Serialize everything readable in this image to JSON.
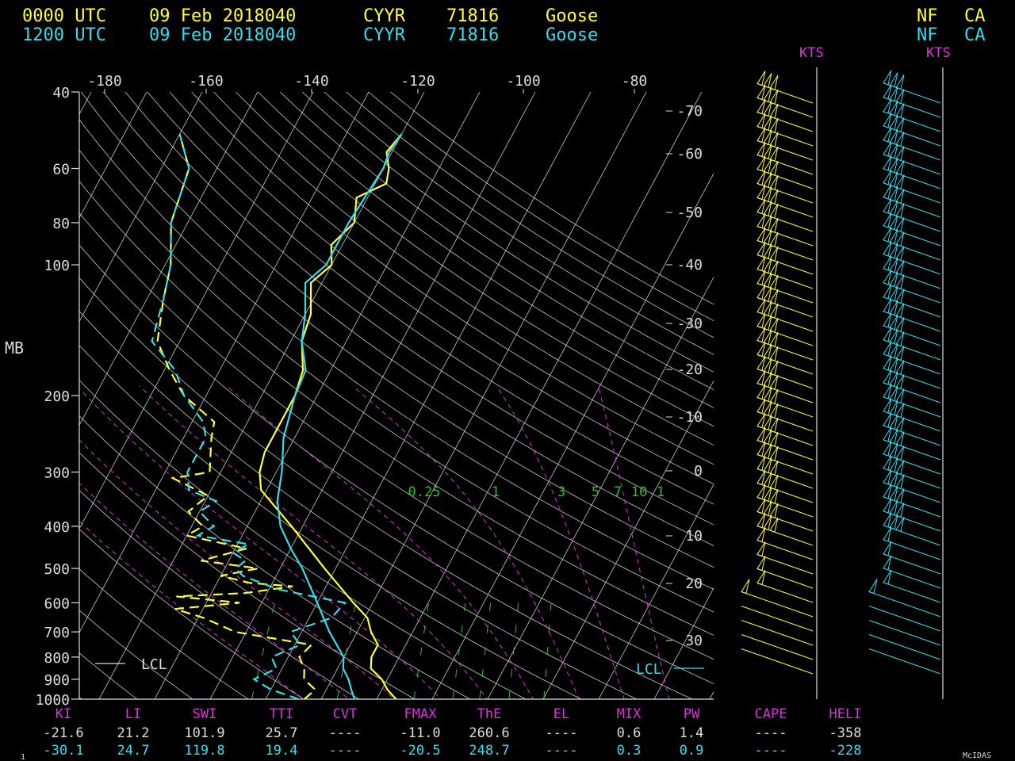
{
  "header": {
    "rows": [
      {
        "time": "0000 UTC",
        "date": "09 Feb 2018040",
        "station": "CYYR",
        "id": "71816",
        "name": "Goose",
        "region": "NF",
        "country": "CA",
        "color": "#ffff33"
      },
      {
        "time": "1200 UTC",
        "date": "09 Feb 2018040",
        "station": "CYYR",
        "id": "71816",
        "name": "Goose",
        "region": "NF",
        "country": "CA",
        "color": "#33ddee"
      }
    ]
  },
  "colors": {
    "yellow": "#ffff33",
    "cyan": "#33ddee",
    "magenta": "#dd33dd",
    "green": "#33bb33",
    "white": "#dddddd",
    "grid": "#c8c8c8"
  },
  "labels": {
    "kts_left": "KTS",
    "kts_right": "KTS",
    "mb": "MB",
    "lcl_left": "LCL",
    "lcl_right": "LCL",
    "footer": "McIDAS",
    "corner": "1"
  },
  "chart_data": {
    "type": "line",
    "pressure_ticks": [
      40,
      60,
      80,
      100,
      200,
      300,
      400,
      500,
      600,
      700,
      800,
      900,
      1000
    ],
    "top_ticks": [
      -180,
      -160,
      -140,
      -120,
      -100,
      -80
    ],
    "right_ticks": [
      -70,
      -60,
      -50,
      -40,
      -30,
      -20,
      -10,
      0,
      10,
      20,
      30
    ],
    "mixing_ratio_labels": [
      "0.25",
      "1",
      "3",
      "5",
      "7",
      "10",
      "1"
    ],
    "series": [
      {
        "color": "yellow",
        "kind": "temperature",
        "points": [
          [
            1000,
            -6.5
          ],
          [
            950,
            -9
          ],
          [
            900,
            -11
          ],
          [
            850,
            -14
          ],
          [
            800,
            -15
          ],
          [
            750,
            -15
          ],
          [
            700,
            -17.5
          ],
          [
            650,
            -19.5
          ],
          [
            600,
            -23.5
          ],
          [
            500,
            -32
          ],
          [
            400,
            -42
          ],
          [
            330,
            -51
          ],
          [
            300,
            -53
          ],
          [
            270,
            -54
          ],
          [
            250,
            -54
          ],
          [
            200,
            -54
          ],
          [
            175,
            -55
          ],
          [
            150,
            -58
          ],
          [
            130,
            -59
          ],
          [
            110,
            -62
          ],
          [
            100,
            -60
          ],
          [
            90,
            -62
          ],
          [
            80,
            -60
          ],
          [
            70,
            -62
          ],
          [
            65,
            -58
          ],
          [
            60,
            -59
          ],
          [
            55,
            -61
          ],
          [
            50,
            -60
          ]
        ]
      },
      {
        "color": "cyan",
        "kind": "temperature",
        "points": [
          [
            1000,
            -14
          ],
          [
            950,
            -15.5
          ],
          [
            900,
            -17
          ],
          [
            850,
            -19
          ],
          [
            800,
            -20
          ],
          [
            700,
            -25
          ],
          [
            600,
            -30
          ],
          [
            500,
            -36
          ],
          [
            450,
            -40
          ],
          [
            400,
            -44
          ],
          [
            350,
            -47
          ],
          [
            300,
            -49
          ],
          [
            250,
            -52
          ],
          [
            200,
            -54
          ],
          [
            175,
            -54.5
          ],
          [
            150,
            -58
          ],
          [
            130,
            -60
          ],
          [
            110,
            -63
          ],
          [
            100,
            -61
          ],
          [
            80,
            -61
          ],
          [
            60,
            -60
          ],
          [
            55,
            -60.5
          ],
          [
            50,
            -60
          ]
        ]
      },
      {
        "color": "yellow",
        "kind": "dewpoint",
        "points": [
          [
            1000,
            -23
          ],
          [
            950,
            -22
          ],
          [
            900,
            -25
          ],
          [
            850,
            -26
          ],
          [
            800,
            -28
          ],
          [
            750,
            -27
          ],
          [
            700,
            -42
          ],
          [
            650,
            -49
          ],
          [
            620,
            -55
          ],
          [
            600,
            -44
          ],
          [
            580,
            -56
          ],
          [
            570,
            -44
          ],
          [
            560,
            -40
          ],
          [
            550,
            -36
          ],
          [
            540,
            -44
          ],
          [
            520,
            -50
          ],
          [
            500,
            -44
          ],
          [
            480,
            -55
          ],
          [
            450,
            -48
          ],
          [
            420,
            -60
          ],
          [
            400,
            -58
          ],
          [
            370,
            -62
          ],
          [
            340,
            -60
          ],
          [
            310,
            -68
          ],
          [
            300,
            -62
          ],
          [
            250,
            -65
          ],
          [
            230,
            -66
          ],
          [
            200,
            -74
          ],
          [
            175,
            -79
          ],
          [
            150,
            -84
          ],
          [
            120,
            -87
          ],
          [
            100,
            -89
          ],
          [
            80,
            -93
          ],
          [
            60,
            -95
          ],
          [
            50,
            -100
          ]
        ]
      },
      {
        "color": "cyan",
        "kind": "dewpoint",
        "points": [
          [
            1000,
            -24
          ],
          [
            950,
            -30
          ],
          [
            900,
            -34
          ],
          [
            850,
            -31
          ],
          [
            800,
            -33
          ],
          [
            750,
            -29
          ],
          [
            700,
            -32
          ],
          [
            650,
            -26
          ],
          [
            600,
            -25
          ],
          [
            560,
            -38
          ],
          [
            540,
            -42
          ],
          [
            520,
            -46
          ],
          [
            500,
            -48
          ],
          [
            480,
            -47
          ],
          [
            460,
            -50
          ],
          [
            440,
            -48
          ],
          [
            420,
            -58
          ],
          [
            400,
            -56
          ],
          [
            370,
            -60
          ],
          [
            350,
            -58
          ],
          [
            330,
            -64
          ],
          [
            300,
            -66
          ],
          [
            250,
            -66
          ],
          [
            230,
            -68
          ],
          [
            200,
            -74
          ],
          [
            175,
            -78
          ],
          [
            150,
            -85
          ],
          [
            120,
            -87
          ],
          [
            100,
            -89
          ],
          [
            80,
            -93
          ],
          [
            60,
            -95
          ],
          [
            50,
            -100
          ]
        ]
      }
    ]
  },
  "indices": {
    "headers": [
      "KI",
      "LI",
      "SWI",
      "TTI",
      "CVT",
      "FMAX",
      "ThE",
      "EL",
      "MIX",
      "PW",
      "CAPE",
      "HELI"
    ],
    "rows": [
      {
        "color": "white",
        "values": [
          "-21.6",
          "21.2",
          "101.9",
          "25.7",
          "----",
          "-11.0",
          "260.6",
          "----",
          "0.6",
          "1.4",
          "----",
          "-358"
        ]
      },
      {
        "color": "cyan",
        "values": [
          "-30.1",
          "24.7",
          "119.8",
          "19.4",
          "----",
          "-20.5",
          "248.7",
          "----",
          "0.3",
          "0.9",
          "----",
          "-228"
        ]
      }
    ]
  }
}
